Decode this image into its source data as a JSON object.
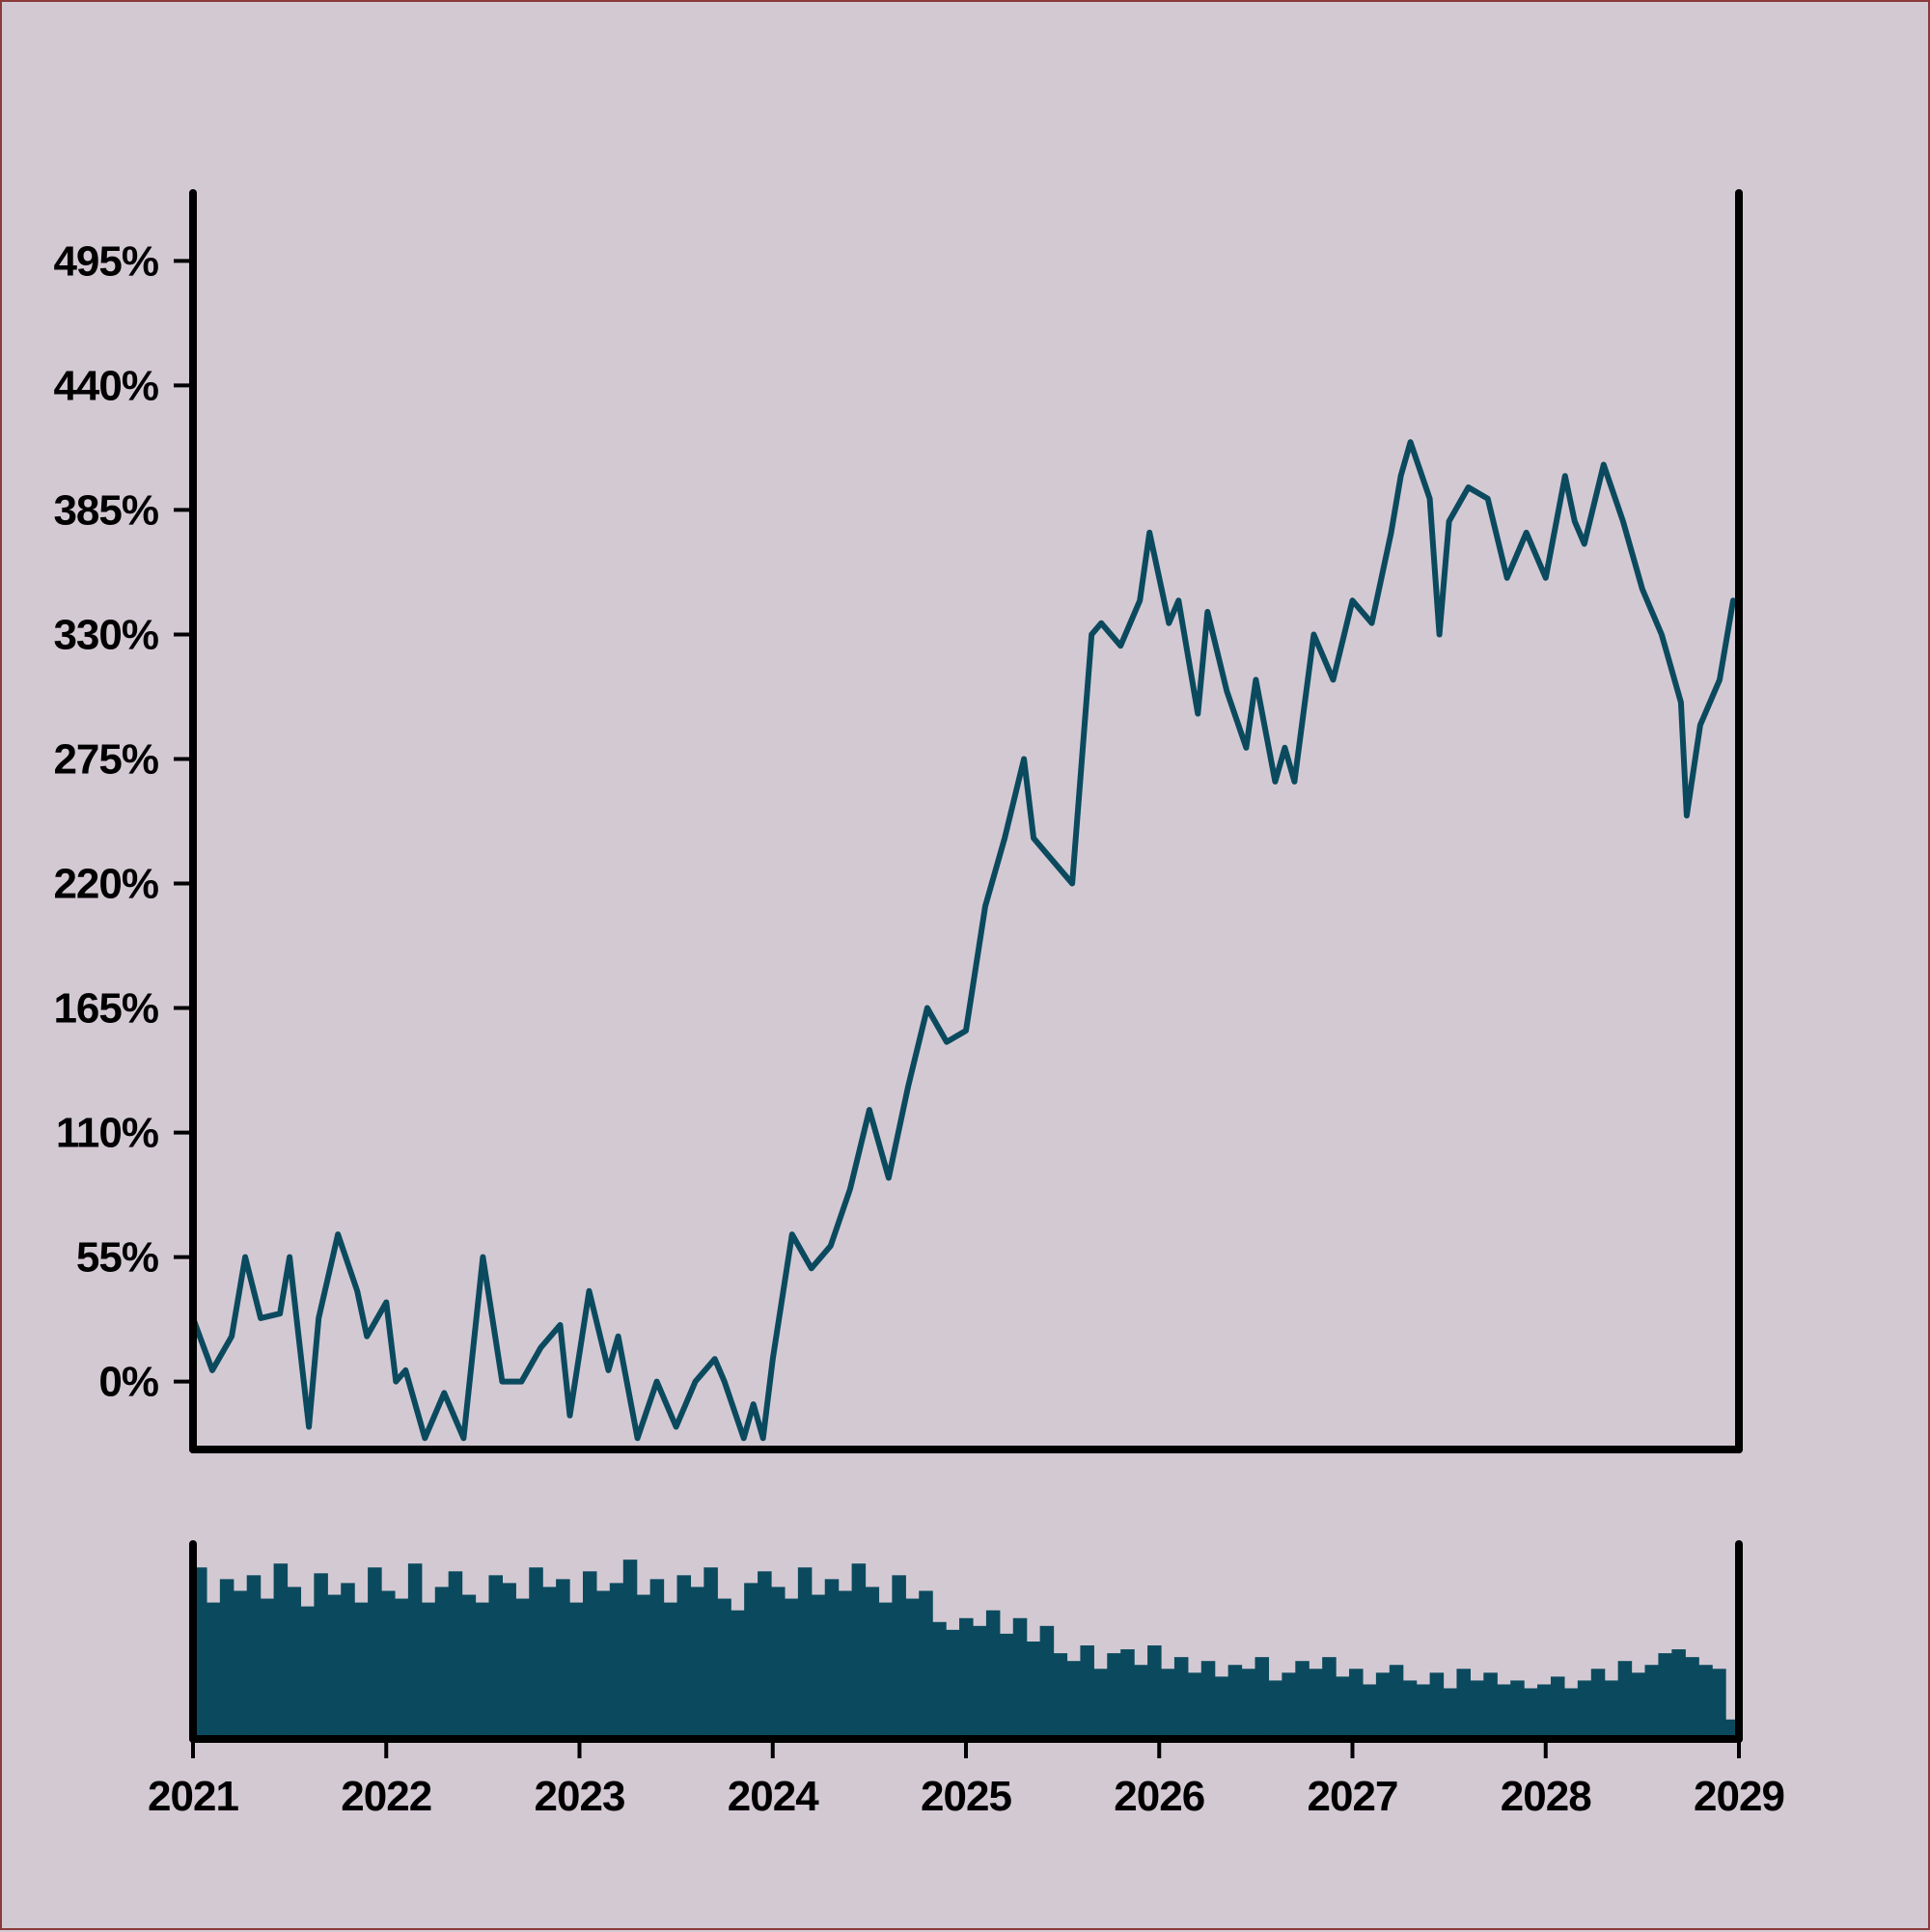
{
  "chart_data": [
    {
      "type": "line",
      "title": "",
      "xlabel": "",
      "ylabel": "",
      "color": "#0b4a5e",
      "background": "#d3c9d3",
      "y_format": "percent",
      "ylim": [
        -30,
        525
      ],
      "xlim": [
        2021,
        2029
      ],
      "yticks": [
        0,
        55,
        110,
        165,
        220,
        275,
        330,
        385,
        440,
        495
      ],
      "ytick_labels": [
        "0%",
        "55%",
        "110%",
        "165%",
        "220%",
        "275%",
        "330%",
        "385%",
        "440%",
        "495%"
      ],
      "grid": false,
      "series": [
        {
          "x": [
            2021.0,
            2021.1,
            2021.2,
            2021.27,
            2021.35,
            2021.45,
            2021.5,
            2021.6,
            2021.65,
            2021.75,
            2021.85,
            2021.9,
            2022.0,
            2022.05,
            2022.1,
            2022.2,
            2022.3,
            2022.4,
            2022.5,
            2022.6,
            2022.7,
            2022.8,
            2022.9,
            2022.95,
            2023.05,
            2023.15,
            2023.2,
            2023.3,
            2023.4,
            2023.5,
            2023.6,
            2023.7,
            2023.75,
            2023.85,
            2023.9,
            2023.95,
            2024.0,
            2024.1,
            2024.2,
            2024.3,
            2024.4,
            2024.5,
            2024.6,
            2024.7,
            2024.8,
            2024.9,
            2025.0,
            2025.1,
            2025.2,
            2025.3,
            2025.35,
            2025.45,
            2025.55,
            2025.65,
            2025.7,
            2025.8,
            2025.9,
            2025.95,
            2026.05,
            2026.1,
            2026.2,
            2026.25,
            2026.35,
            2026.45,
            2026.5,
            2026.6,
            2026.65,
            2026.7,
            2026.8,
            2026.9,
            2027.0,
            2027.1,
            2027.2,
            2027.25,
            2027.3,
            2027.4,
            2027.45,
            2027.5,
            2027.6,
            2027.7,
            2027.8,
            2027.9,
            2028.0,
            2028.1,
            2028.15,
            2028.2,
            2028.3,
            2028.4,
            2028.5,
            2028.6,
            2028.7,
            2028.73,
            2028.8,
            2028.9,
            2028.97
          ],
          "y": [
            28,
            5,
            20,
            55,
            28,
            30,
            55,
            -20,
            28,
            65,
            40,
            20,
            35,
            0,
            5,
            -25,
            -5,
            -25,
            55,
            0,
            0,
            15,
            25,
            -15,
            40,
            5,
            20,
            -25,
            0,
            -20,
            0,
            10,
            0,
            -25,
            -10,
            -25,
            10,
            65,
            50,
            60,
            85,
            120,
            90,
            130,
            165,
            150,
            155,
            210,
            240,
            275,
            240,
            230,
            220,
            330,
            335,
            325,
            345,
            375,
            335,
            345,
            295,
            340,
            305,
            280,
            310,
            265,
            280,
            265,
            330,
            310,
            345,
            335,
            375,
            400,
            415,
            390,
            330,
            380,
            395,
            390,
            355,
            375,
            355,
            400,
            380,
            370,
            405,
            380,
            350,
            330,
            300,
            250,
            290,
            310,
            345
          ]
        }
      ]
    },
    {
      "type": "bar",
      "title": "",
      "xlabel": "",
      "ylabel": "",
      "color": "#0b4a5e",
      "xlim": [
        2021,
        2029
      ],
      "xticks": [
        2021,
        2022,
        2023,
        2024,
        2025,
        2026,
        2027,
        2028,
        2029
      ],
      "xtick_labels": [
        "2021",
        "2022",
        "2023",
        "2024",
        "2025",
        "2026",
        "2027",
        "2028",
        "2029"
      ],
      "ylim": [
        0,
        100
      ],
      "values": [
        88,
        70,
        82,
        76,
        84,
        72,
        90,
        78,
        68,
        85,
        74,
        80,
        70,
        88,
        76,
        72,
        90,
        70,
        78,
        86,
        74,
        70,
        84,
        80,
        72,
        88,
        78,
        82,
        70,
        86,
        76,
        80,
        92,
        74,
        82,
        70,
        84,
        78,
        88,
        72,
        66,
        80,
        86,
        78,
        72,
        88,
        74,
        82,
        76,
        90,
        78,
        70,
        84,
        72,
        76,
        60,
        56,
        62,
        58,
        66,
        54,
        62,
        50,
        58,
        44,
        40,
        48,
        36,
        44,
        46,
        38,
        48,
        36,
        42,
        34,
        40,
        32,
        38,
        36,
        42,
        30,
        34,
        40,
        36,
        42,
        32,
        36,
        28,
        34,
        38,
        30,
        28,
        34,
        26,
        36,
        30,
        34,
        28,
        30,
        26,
        28,
        32,
        26,
        30,
        36,
        30,
        40,
        34,
        38,
        44,
        46,
        42,
        38,
        36,
        10
      ]
    }
  ]
}
